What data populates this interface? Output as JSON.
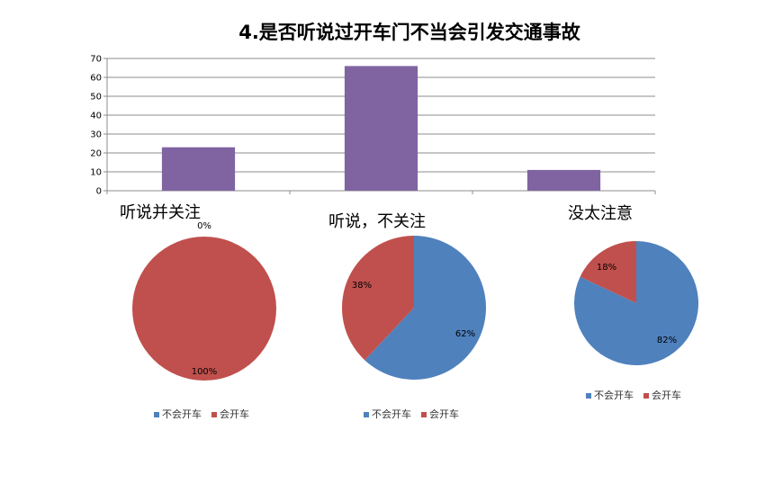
{
  "chart_data": [
    {
      "type": "bar",
      "title": "4.是否听说过开车门不当会引发交通事故",
      "categories": [
        "听说并关注",
        "听说，不关注",
        "没太注意"
      ],
      "values": [
        23,
        66,
        11
      ],
      "ylim": [
        0,
        70
      ],
      "yticks": [
        0,
        10,
        20,
        30,
        40,
        50,
        60,
        70
      ],
      "grid": true,
      "color": "#8064A2"
    },
    {
      "type": "pie",
      "title": "听说并关注",
      "labels": [
        "不会开车",
        "会开车"
      ],
      "values": [
        0,
        100
      ],
      "value_labels": [
        "0%",
        "100%"
      ],
      "colors": [
        "#4F81BD",
        "#C0504D"
      ],
      "legend": "bottom"
    },
    {
      "type": "pie",
      "title": "听说，不关注",
      "labels": [
        "不会开车",
        "会开车"
      ],
      "values": [
        62,
        38
      ],
      "value_labels": [
        "62%",
        "38%"
      ],
      "colors": [
        "#4F81BD",
        "#C0504D"
      ],
      "legend": "bottom"
    },
    {
      "type": "pie",
      "title": "没太注意",
      "labels": [
        "不会开车",
        "会开车"
      ],
      "values": [
        82,
        18
      ],
      "value_labels": [
        "82%",
        "18%"
      ],
      "colors": [
        "#4F81BD",
        "#C0504D"
      ],
      "legend": "bottom"
    }
  ]
}
